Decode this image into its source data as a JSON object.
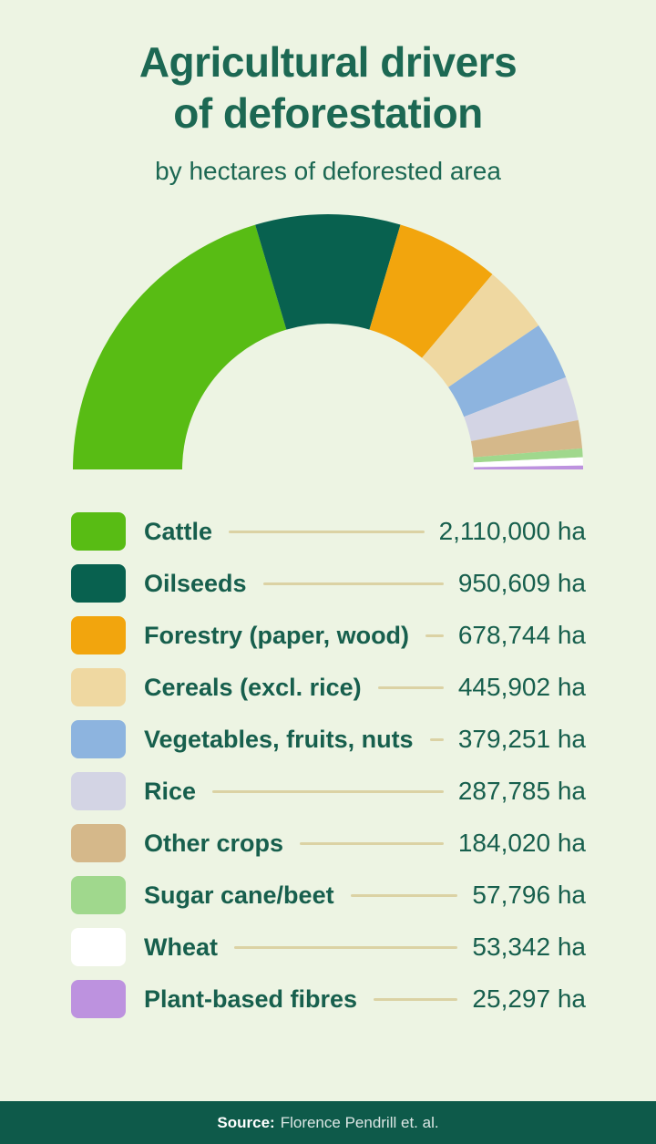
{
  "title": {
    "line1": "Agricultural drivers",
    "line2": "of deforestation"
  },
  "subtitle": "by hectares of deforested area",
  "chart_data": {
    "type": "pie",
    "variant": "half-donut-gauge",
    "title": "Agricultural drivers of deforestation",
    "subtitle": "by hectares of deforested area",
    "unit": "ha",
    "start_angle_deg": 180,
    "end_angle_deg": 0,
    "legend_position": "below",
    "categories": [
      "Cattle",
      "Oilseeds",
      "Forestry (paper, wood)",
      "Cereals (excl. rice)",
      "Vegetables, fruits, nuts",
      "Rice",
      "Other crops",
      "Sugar cane/beet",
      "Wheat",
      "Plant-based fibres"
    ],
    "values": [
      2110000,
      950609,
      678744,
      445902,
      379251,
      287785,
      184020,
      57796,
      53342,
      25297
    ],
    "value_labels": [
      "2,110,000 ha",
      "950,609 ha",
      "678,744 ha",
      "445,902 ha",
      "379,251 ha",
      "287,785 ha",
      "184,020 ha",
      "57,796 ha",
      "53,342 ha",
      "25,297 ha"
    ],
    "colors": [
      "#58BC14",
      "#08614F",
      "#F2A50D",
      "#EFD8A1",
      "#8DB4DF",
      "#D3D4E4",
      "#D5B88A",
      "#A0D88D",
      "#FFFFFF",
      "#BD92DF"
    ]
  },
  "footer": {
    "source_label": "Source:",
    "source_text": "Florence Pendrill et. al."
  },
  "theme": {
    "background": "#EDF4E3",
    "text_green": "#1C6853",
    "footer_band": "#0E5A4A",
    "leader_line": "#DBD2A4"
  }
}
